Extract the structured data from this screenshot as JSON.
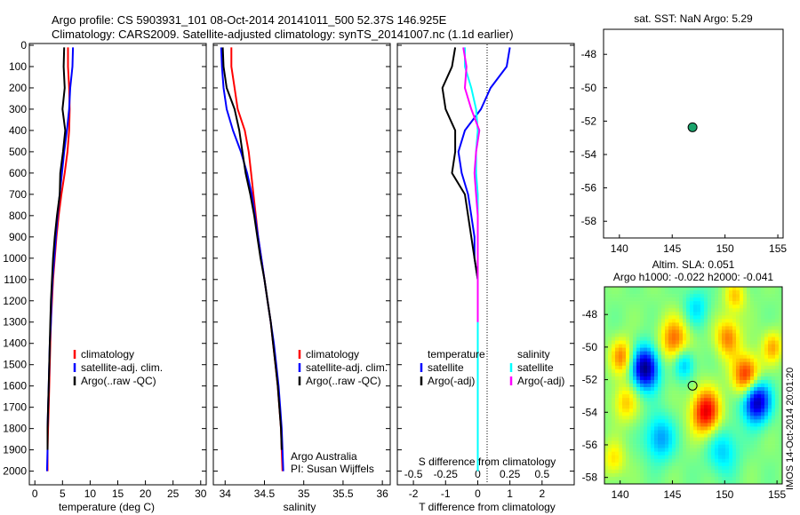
{
  "title": {
    "line1": "Argo profile: CS 5903931_101 08-Oct-2014 20141011_500 52.37S 146.925E",
    "line2": "Climatology: CARS2009. Satellite-adjusted climatology: synTS_20141007.nc (1.1d earlier)"
  },
  "colors": {
    "climatology": "#ff0000",
    "satellite": "#0000ff",
    "argo": "#000000",
    "satellite_S": "#00ffff",
    "argo_S": "#ff00ff",
    "marker": "#1aa36b"
  },
  "chart_data": [
    {
      "type": "line",
      "id": "temperature",
      "xlabel": "temperature (deg C)",
      "xlim": [
        -1,
        31
      ],
      "xticks": [
        0,
        5,
        10,
        15,
        20,
        25,
        30
      ],
      "ylim": [
        2080,
        0
      ],
      "yticks": [
        0,
        100,
        200,
        300,
        400,
        500,
        600,
        700,
        800,
        900,
        1000,
        1100,
        1200,
        1300,
        1400,
        1500,
        1600,
        1700,
        1800,
        1900,
        2000
      ],
      "legend": [
        "climatology",
        "satellite-adj. clim.",
        "Argo(..raw -QC)"
      ],
      "series": [
        {
          "name": "climatology",
          "color": "red",
          "x": [
            6.0,
            6.0,
            6.2,
            6.3,
            6.2,
            5.9,
            5.4,
            4.8,
            4.3,
            3.9,
            3.6,
            3.3,
            3.1,
            2.9,
            2.8,
            2.7,
            2.6,
            2.5,
            2.4,
            2.3,
            2.3
          ],
          "y": [
            10,
            100,
            200,
            300,
            400,
            500,
            600,
            700,
            800,
            900,
            1000,
            1100,
            1200,
            1300,
            1400,
            1500,
            1600,
            1700,
            1800,
            1900,
            2000
          ]
        },
        {
          "name": "satellite-adj. clim.",
          "color": "blue",
          "x": [
            6.9,
            6.8,
            6.4,
            6.2,
            5.8,
            5.3,
            4.9,
            4.5,
            4.1,
            3.8,
            3.5,
            3.2,
            3.0,
            2.9,
            2.7,
            2.6,
            2.5,
            2.4,
            2.3,
            2.3,
            2.2
          ],
          "y": [
            10,
            100,
            200,
            300,
            400,
            500,
            600,
            700,
            800,
            900,
            1000,
            1100,
            1200,
            1300,
            1400,
            1500,
            1600,
            1700,
            1800,
            1900,
            2000
          ]
        },
        {
          "name": "Argo(..raw -QC)",
          "color": "black",
          "x": [
            5.3,
            5.2,
            5.4,
            5.0,
            5.5,
            5.1,
            4.6,
            4.5,
            4.0,
            3.6,
            3.3,
            3.1,
            2.9,
            2.8,
            2.7,
            2.6,
            2.5,
            2.4,
            2.3,
            2.3
          ],
          "y": [
            10,
            100,
            200,
            300,
            400,
            500,
            600,
            700,
            800,
            900,
            1000,
            1100,
            1200,
            1300,
            1400,
            1500,
            1600,
            1700,
            1800,
            1900
          ]
        }
      ]
    },
    {
      "type": "line",
      "id": "salinity",
      "xlabel": "salinity",
      "xlim": [
        33.85,
        36.1
      ],
      "xticks": [
        34,
        34.5,
        35,
        35.5,
        36
      ],
      "ylim": [
        2080,
        0
      ],
      "legend": [
        "climatology",
        "satellite-adj. clim.",
        "Argo(..raw -QC)"
      ],
      "annotation": [
        "Argo Australia",
        "PI: Susan Wijffels"
      ],
      "series": [
        {
          "name": "climatology",
          "color": "red",
          "x": [
            34.08,
            34.08,
            34.12,
            34.16,
            34.25,
            34.3,
            34.33,
            34.36,
            34.39,
            34.42,
            34.46,
            34.5,
            34.54,
            34.58,
            34.61,
            34.64,
            34.67,
            34.69,
            34.71,
            34.72,
            34.73
          ],
          "y": [
            10,
            100,
            200,
            300,
            400,
            500,
            600,
            700,
            800,
            900,
            1000,
            1100,
            1200,
            1300,
            1400,
            1500,
            1600,
            1700,
            1800,
            1900,
            2000
          ]
        },
        {
          "name": "satellite-adj. clim.",
          "color": "blue",
          "x": [
            33.95,
            33.96,
            33.98,
            34.02,
            34.1,
            34.2,
            34.28,
            34.34,
            34.38,
            34.42,
            34.46,
            34.5,
            34.54,
            34.58,
            34.62,
            34.65,
            34.68,
            34.7,
            34.72,
            34.73,
            34.74
          ],
          "y": [
            10,
            100,
            200,
            300,
            400,
            500,
            600,
            700,
            800,
            900,
            1000,
            1100,
            1200,
            1300,
            1400,
            1500,
            1600,
            1700,
            1800,
            1900,
            2000
          ]
        },
        {
          "name": "Argo(..raw -QC)",
          "color": "black",
          "x": [
            33.97,
            33.98,
            34.02,
            34.12,
            34.18,
            34.22,
            34.26,
            34.32,
            34.37,
            34.41,
            34.45,
            34.5,
            34.54,
            34.58,
            34.61,
            34.64,
            34.67,
            34.69,
            34.71,
            34.72
          ],
          "y": [
            10,
            100,
            200,
            300,
            400,
            500,
            600,
            700,
            800,
            900,
            1000,
            1100,
            1200,
            1300,
            1400,
            1500,
            1600,
            1700,
            1800,
            1900
          ]
        }
      ]
    },
    {
      "type": "line",
      "id": "difference",
      "xlabel": "T difference from climatology",
      "xlabel_top": "S difference from climatology",
      "xlim": [
        -2.5,
        3
      ],
      "xticks": [
        -2,
        -1,
        0,
        1,
        2
      ],
      "top_ticks": [
        "-0.5",
        "-0.25",
        "0",
        "0.25",
        "0.5"
      ],
      "ylim": [
        2080,
        0
      ],
      "legend_temperature": [
        "temperature",
        "satellite",
        "Argo(-adj)"
      ],
      "legend_salinity": [
        "salinity",
        "satellite",
        "Argo(-adj)"
      ],
      "series": [
        {
          "name": "T satellite",
          "color": "blue",
          "x": [
            1.0,
            0.9,
            0.4,
            0.1,
            -0.4,
            -0.6,
            -0.5,
            -0.3,
            -0.2,
            -0.1,
            -0.1,
            0.0,
            0.0,
            0.0,
            0.0,
            0.0,
            0.0,
            0.0,
            0.0
          ],
          "y": [
            10,
            100,
            200,
            300,
            400,
            500,
            600,
            700,
            800,
            900,
            1000,
            1100,
            1200,
            1300,
            1400,
            1500,
            1600,
            1700,
            1800
          ]
        },
        {
          "name": "T Argo(-adj)",
          "color": "black",
          "x": [
            -0.7,
            -0.8,
            -1.1,
            -1.0,
            -0.7,
            -0.7,
            -0.8,
            -0.4,
            -0.3,
            -0.2,
            -0.1,
            0.0,
            0.0,
            0.0,
            0.0
          ],
          "y": [
            10,
            100,
            200,
            300,
            400,
            500,
            600,
            700,
            800,
            900,
            1000,
            1100,
            1200,
            1300,
            1400
          ]
        },
        {
          "name": "S satellite",
          "color": "cyan",
          "x": [
            -0.4,
            -0.4,
            -0.2,
            -0.05,
            0.0,
            -0.05,
            -0.05,
            0.0,
            0.0,
            0.0,
            0.0,
            0.0,
            0.0,
            0.0,
            0.0,
            0.0,
            0.0,
            0.0,
            0.0,
            0.0,
            0.0
          ],
          "y": [
            10,
            100,
            200,
            300,
            400,
            500,
            600,
            700,
            800,
            900,
            1000,
            1100,
            1200,
            1300,
            1400,
            1500,
            1600,
            1700,
            1800,
            1900,
            2000
          ]
        },
        {
          "name": "S Argo(-adj)",
          "color": "magenta",
          "x": [
            -0.45,
            -0.35,
            -0.4,
            -0.2,
            0.05,
            -0.05,
            -0.1,
            -0.05,
            0.0,
            0.0,
            0.0,
            0.0,
            0.0,
            0.0
          ],
          "y": [
            10,
            100,
            200,
            300,
            400,
            500,
            600,
            700,
            800,
            900,
            1000,
            1100,
            1200,
            1300
          ]
        }
      ]
    },
    {
      "type": "scatter",
      "id": "location",
      "title": "sat. SST: NaN Argo: 5.29",
      "xlim": [
        138.5,
        155.5
      ],
      "xticks": [
        140,
        145,
        150,
        155
      ],
      "ylim": [
        -59,
        -46.5
      ],
      "yticks": [
        -48,
        -50,
        -52,
        -54,
        -56,
        -58
      ],
      "points": [
        {
          "x": 146.925,
          "y": -52.37
        }
      ]
    },
    {
      "type": "heatmap",
      "id": "sla",
      "title": [
        "Altim. SLA: 0.051",
        "Argo h1000: -0.022 h2000: -0.041"
      ],
      "xlim": [
        138.5,
        155.5
      ],
      "xticks": [
        140,
        145,
        150,
        155
      ],
      "ylim": [
        -58.4,
        -46.3
      ],
      "yticks": [
        -48,
        -50,
        -52,
        -54,
        -56,
        -58
      ],
      "points": [
        {
          "x": 146.925,
          "y": -52.37
        }
      ],
      "side_label": "IMOS 14-Oct-2014 20:01:20",
      "blobs": [
        {
          "x": 142.4,
          "y": -51.3,
          "v": -1.0,
          "r": 1.3
        },
        {
          "x": 153.0,
          "y": -53.3,
          "v": -1.0,
          "r": 1.3
        },
        {
          "x": 145.2,
          "y": -49.6,
          "v": 0.55,
          "r": 1.4
        },
        {
          "x": 152.1,
          "y": -51.8,
          "v": 0.75,
          "r": 1.3
        },
        {
          "x": 148.2,
          "y": -54.0,
          "v": 0.8,
          "r": 1.4
        },
        {
          "x": 140.2,
          "y": -50.6,
          "v": 0.5,
          "r": 1.1
        },
        {
          "x": 150.3,
          "y": -49.4,
          "v": 0.5,
          "r": 1.2
        },
        {
          "x": 146.1,
          "y": -51.0,
          "v": -0.45,
          "r": 1.0
        },
        {
          "x": 143.8,
          "y": -55.6,
          "v": -0.45,
          "r": 1.4
        },
        {
          "x": 140.5,
          "y": -53.4,
          "v": 0.35,
          "r": 1.2
        },
        {
          "x": 149.8,
          "y": -56.3,
          "v": -0.35,
          "r": 1.5
        },
        {
          "x": 154.6,
          "y": -50.0,
          "v": 0.4,
          "r": 1.0
        },
        {
          "x": 147.3,
          "y": -47.6,
          "v": -0.3,
          "r": 1.2
        },
        {
          "x": 151.0,
          "y": -46.9,
          "v": 0.35,
          "r": 1.0
        },
        {
          "x": 139.4,
          "y": -56.9,
          "v": 0.3,
          "r": 1.1
        }
      ]
    }
  ]
}
